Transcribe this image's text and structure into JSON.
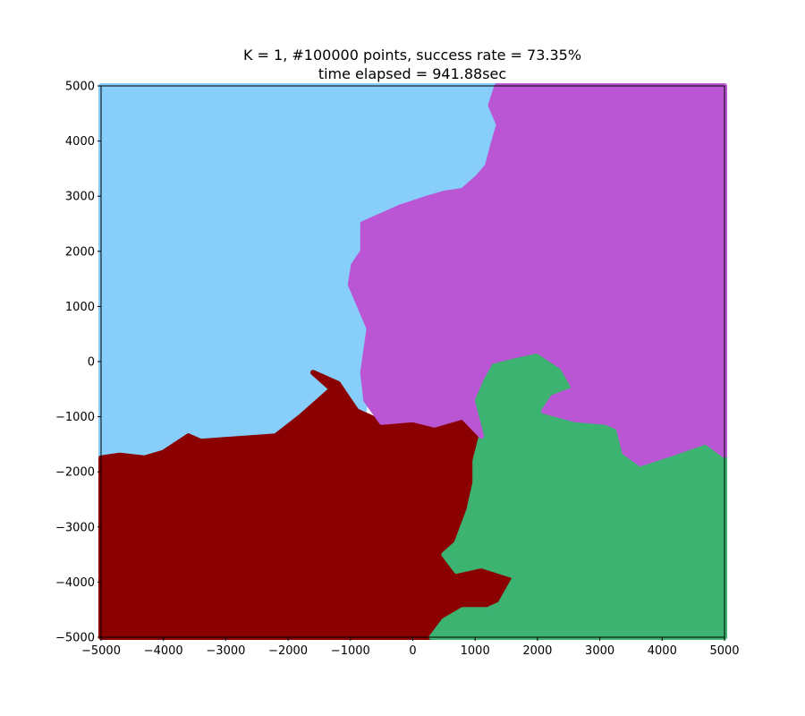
{
  "chart_data": {
    "type": "heatmap",
    "title_lines": [
      "K = 1, #100000 points, success rate = 73.35%",
      "time elapsed = 941.88sec"
    ],
    "xlabel": "",
    "ylabel": "",
    "xlim": [
      -5000,
      5000
    ],
    "ylim": [
      -5000,
      5000
    ],
    "x_ticks": [
      -5000,
      -4000,
      -3000,
      -2000,
      -1000,
      0,
      1000,
      2000,
      3000,
      4000,
      5000
    ],
    "y_ticks": [
      -5000,
      -4000,
      -3000,
      -2000,
      -1000,
      0,
      1000,
      2000,
      3000,
      4000,
      5000
    ],
    "x_tick_labels": [
      "−5000",
      "−4000",
      "−3000",
      "−2000",
      "−1000",
      "0",
      "1000",
      "2000",
      "3000",
      "4000",
      "5000"
    ],
    "y_tick_labels": [
      "−5000",
      "−4000",
      "−3000",
      "−2000",
      "−1000",
      "0",
      "1000",
      "2000",
      "3000",
      "4000",
      "5000"
    ],
    "grid": false,
    "legend": false,
    "regions": [
      {
        "color": "#87CEFA",
        "boundary": [
          [
            -5000,
            5000
          ],
          [
            1350,
            5000
          ],
          [
            1250,
            4650
          ],
          [
            1380,
            4300
          ],
          [
            1280,
            3900
          ],
          [
            1200,
            3550
          ],
          [
            1050,
            3350
          ],
          [
            800,
            3100
          ],
          [
            500,
            3050
          ],
          [
            200,
            2950
          ],
          [
            -200,
            2800
          ],
          [
            -500,
            2650
          ],
          [
            -800,
            2500
          ],
          [
            -800,
            2000
          ],
          [
            -950,
            1750
          ],
          [
            -1000,
            1400
          ],
          [
            -700,
            600
          ],
          [
            -800,
            -200
          ],
          [
            -750,
            -700
          ],
          [
            -800,
            -1000
          ],
          [
            -1200,
            -900
          ],
          [
            -1800,
            -1000
          ],
          [
            -2200,
            -1350
          ],
          [
            -2800,
            -1400
          ],
          [
            -3400,
            -1450
          ],
          [
            -3600,
            -1350
          ],
          [
            -4000,
            -1650
          ],
          [
            -4300,
            -1750
          ],
          [
            -4700,
            -1700
          ],
          [
            -5000,
            -1750
          ]
        ]
      },
      {
        "color": "#8B0000",
        "boundary": [
          [
            -5000,
            -1750
          ],
          [
            -4700,
            -1700
          ],
          [
            -4300,
            -1750
          ],
          [
            -4000,
            -1650
          ],
          [
            -3600,
            -1350
          ],
          [
            -3400,
            -1450
          ],
          [
            -2800,
            -1400
          ],
          [
            -2200,
            -1350
          ],
          [
            -1800,
            -1000
          ],
          [
            -1300,
            -500
          ],
          [
            -1600,
            -200
          ],
          [
            -1200,
            -400
          ],
          [
            -900,
            -900
          ],
          [
            -500,
            -1100
          ],
          [
            0,
            -1050
          ],
          [
            350,
            -1150
          ],
          [
            800,
            -1000
          ],
          [
            1100,
            -1350
          ],
          [
            1000,
            -1800
          ],
          [
            1000,
            -2200
          ],
          [
            900,
            -2700
          ],
          [
            700,
            -3300
          ],
          [
            500,
            -3500
          ],
          [
            700,
            -3800
          ],
          [
            1100,
            -3700
          ],
          [
            1650,
            -3900
          ],
          [
            1400,
            -4400
          ],
          [
            1200,
            -4500
          ],
          [
            800,
            -4500
          ],
          [
            500,
            -4700
          ],
          [
            300,
            -5000
          ],
          [
            -5000,
            -5000
          ]
        ]
      },
      {
        "color": "#3CB371",
        "boundary": [
          [
            300,
            -5000
          ],
          [
            500,
            -4700
          ],
          [
            800,
            -4500
          ],
          [
            1200,
            -4500
          ],
          [
            1400,
            -4400
          ],
          [
            1650,
            -3900
          ],
          [
            1100,
            -3700
          ],
          [
            700,
            -3800
          ],
          [
            500,
            -3500
          ],
          [
            700,
            -3300
          ],
          [
            900,
            -2700
          ],
          [
            1000,
            -2200
          ],
          [
            1000,
            -1800
          ],
          [
            1100,
            -1350
          ],
          [
            950,
            -700
          ],
          [
            1100,
            -300
          ],
          [
            1250,
            0
          ],
          [
            1600,
            100
          ],
          [
            2000,
            200
          ],
          [
            2400,
            -100
          ],
          [
            2600,
            -500
          ],
          [
            2250,
            -650
          ],
          [
            2100,
            -900
          ],
          [
            2600,
            -1050
          ],
          [
            3100,
            -1100
          ],
          [
            3300,
            -1200
          ],
          [
            3400,
            -1650
          ],
          [
            3650,
            -1850
          ],
          [
            4200,
            -1650
          ],
          [
            4700,
            -1450
          ],
          [
            5000,
            -1700
          ],
          [
            5000,
            -5000
          ]
        ]
      },
      {
        "color": "#BA55D3",
        "boundary": [
          [
            1350,
            5000
          ],
          [
            5000,
            5000
          ],
          [
            5000,
            -1700
          ],
          [
            4700,
            -1450
          ],
          [
            4200,
            -1650
          ],
          [
            3650,
            -1850
          ],
          [
            3400,
            -1650
          ],
          [
            3300,
            -1200
          ],
          [
            3100,
            -1100
          ],
          [
            2600,
            -1050
          ],
          [
            2100,
            -900
          ],
          [
            2250,
            -650
          ],
          [
            2600,
            -500
          ],
          [
            2400,
            -100
          ],
          [
            2000,
            200
          ],
          [
            1600,
            100
          ],
          [
            1250,
            0
          ],
          [
            1100,
            -300
          ],
          [
            950,
            -700
          ],
          [
            1100,
            -1350
          ],
          [
            800,
            -1000
          ],
          [
            350,
            -1150
          ],
          [
            0,
            -1050
          ],
          [
            -500,
            -1100
          ],
          [
            -750,
            -700
          ],
          [
            -800,
            -200
          ],
          [
            -700,
            600
          ],
          [
            -1000,
            1400
          ],
          [
            -950,
            1750
          ],
          [
            -800,
            2000
          ],
          [
            -800,
            2500
          ],
          [
            -500,
            2650
          ],
          [
            -200,
            2800
          ],
          [
            200,
            2950
          ],
          [
            500,
            3050
          ],
          [
            800,
            3100
          ],
          [
            1050,
            3350
          ],
          [
            1200,
            3550
          ],
          [
            1280,
            3900
          ],
          [
            1380,
            4300
          ],
          [
            1250,
            4650
          ]
        ]
      }
    ]
  }
}
